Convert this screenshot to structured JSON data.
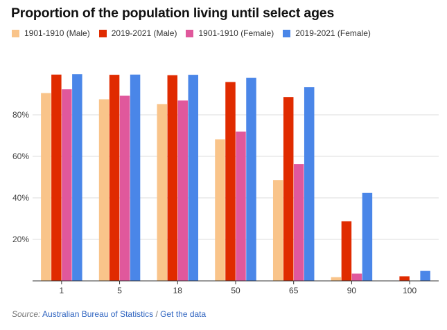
{
  "title": "Proportion of the population living until select ages",
  "footer": {
    "source_label": "Source:",
    "source_link": "Australian Bureau of Statistics",
    "separator": "/",
    "data_link": "Get the data"
  },
  "chart_data": {
    "type": "bar",
    "title": "Proportion of the population living until select ages",
    "xlabel": "",
    "ylabel": "",
    "categories": [
      "1",
      "5",
      "18",
      "50",
      "65",
      "90",
      "100"
    ],
    "series": [
      {
        "name": "1901-1910 (Male)",
        "color": "#f9c48a",
        "values": [
          90.5,
          87.5,
          85.2,
          68.2,
          48.6,
          1.8,
          0.0
        ]
      },
      {
        "name": "2019-2021 (Male)",
        "color": "#e02b00",
        "values": [
          99.4,
          99.3,
          99.1,
          95.8,
          88.6,
          28.7,
          2.2
        ]
      },
      {
        "name": "1901-1910 (Female)",
        "color": "#e0589c",
        "values": [
          92.3,
          89.2,
          86.9,
          71.9,
          56.3,
          3.5,
          0.1
        ]
      },
      {
        "name": "2019-2021 (Female)",
        "color": "#4a86e8",
        "values": [
          99.6,
          99.4,
          99.3,
          97.8,
          93.3,
          42.4,
          4.8
        ]
      }
    ],
    "yticks": [
      "20%",
      "40%",
      "60%",
      "80%"
    ],
    "ytick_values": [
      20,
      40,
      60,
      80
    ],
    "ylim": [
      0,
      100
    ],
    "grid": true,
    "legend_position": "top-left"
  }
}
